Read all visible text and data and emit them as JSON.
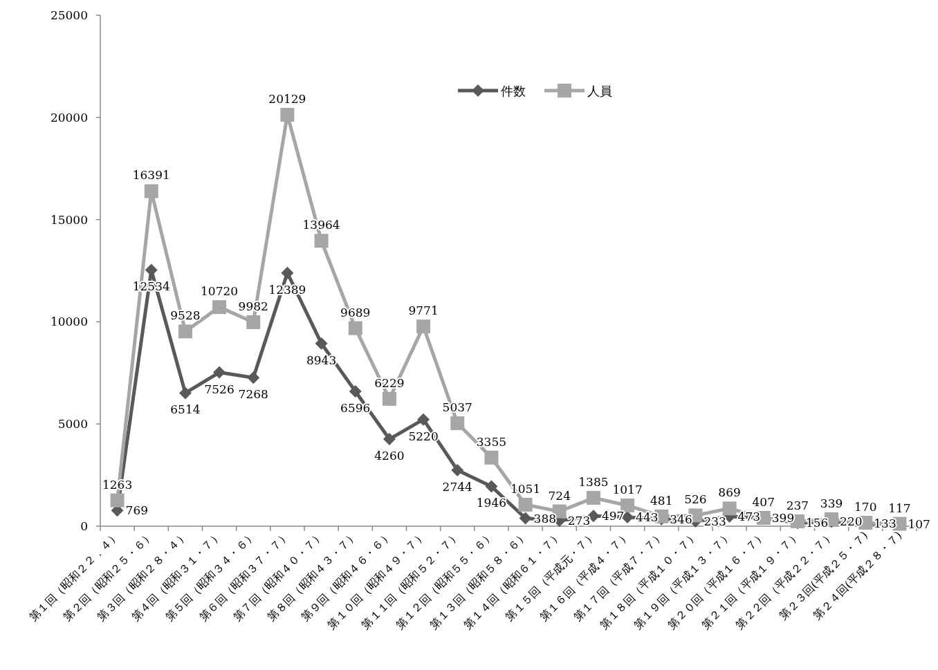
{
  "chart_data": {
    "type": "line",
    "categories": [
      "第１回（昭和２２．４）",
      "第２回（昭和２５・６）",
      "第３回（昭和２８・４）",
      "第４回（昭和３１・７）",
      "第５回（昭和３４・６）",
      "第６回（昭和３７・７）",
      "第７回（昭和４０・７）",
      "第８回（昭和４３・７）",
      "第９回（昭和４６・６）",
      "第１０回（昭和４９・７）",
      "第１１回（昭和５２・７）",
      "第１２回（昭和５５・６）",
      "第１３回（昭和５８・６）",
      "第１４回（昭和６１・７）",
      "第１５回（平成元・７）",
      "第１６回（平成４・７）",
      "第１７回（平成７・７）",
      "第１８回（平成１０・７）",
      "第１９回（平成１３・７）",
      "第２０回（平成１６・７）",
      "第２１回（平成１９・７）",
      "第２２回（平成２２・７）",
      "第２３回(平成２５・７)",
      "第２４回(平成２８・７)"
    ],
    "series": [
      {
        "name": "件数",
        "color": "#595959",
        "marker": "diamond",
        "values": [
          769,
          12534,
          6514,
          7526,
          7268,
          12389,
          8943,
          6596,
          4260,
          5220,
          2744,
          1946,
          388,
          273,
          497,
          443,
          346,
          233,
          473,
          399,
          156,
          220,
          133,
          107
        ]
      },
      {
        "name": "人員",
        "color": "#a6a6a6",
        "marker": "square",
        "values": [
          1263,
          16391,
          9528,
          10720,
          9982,
          20129,
          13964,
          9689,
          6229,
          9771,
          5037,
          3355,
          1051,
          724,
          1385,
          1017,
          481,
          526,
          869,
          407,
          237,
          339,
          170,
          117
        ]
      }
    ],
    "ylim": [
      0,
      25000
    ],
    "yticks": [
      0,
      5000,
      10000,
      15000,
      20000,
      25000
    ],
    "grid": false,
    "legend": "top",
    "data_labels": true
  }
}
